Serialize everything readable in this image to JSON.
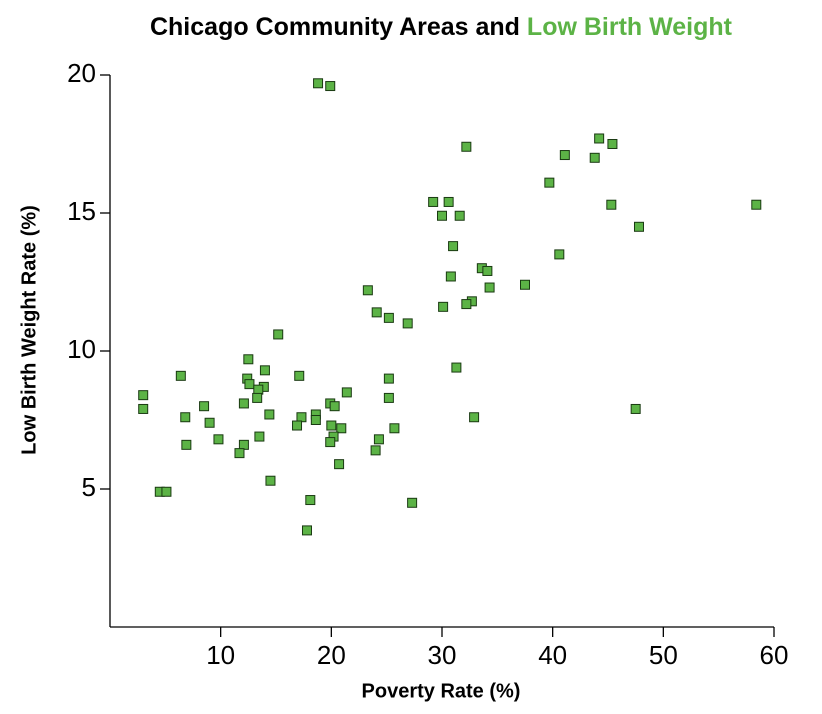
{
  "chart_data": {
    "type": "scatter",
    "title": [
      "Chicago Community Areas and",
      "Low Birth Weight"
    ],
    "title_colors": [
      "#000000",
      "#5cb346"
    ],
    "x_label": "Poverty Rate (%)",
    "y_label": "Low Birth Weight Rate (%)",
    "xlim": [
      0,
      60
    ],
    "xticks": [
      10,
      20,
      30,
      40,
      50,
      60
    ],
    "ylim": [
      0,
      20
    ],
    "yticks": [
      5,
      10,
      15,
      20
    ],
    "grid": false,
    "color": "#5cb346",
    "x": [
      18.8,
      19.9,
      32.2,
      44.2,
      45.4,
      41.1,
      43.8,
      39.7,
      29.2,
      30.6,
      30.0,
      31.6,
      45.3,
      58.4,
      47.8,
      31.0,
      40.6,
      33.6,
      34.1,
      30.8,
      34.3,
      37.5,
      23.3,
      32.7,
      32.2,
      30.1,
      24.1,
      25.2,
      26.9,
      15.2,
      12.5,
      31.3,
      14.0,
      6.4,
      17.1,
      12.4,
      25.2,
      12.6,
      13.9,
      13.4,
      21.4,
      3.0,
      13.3,
      25.2,
      12.1,
      19.9,
      20.3,
      8.5,
      3.0,
      47.5,
      14.4,
      18.6,
      6.8,
      17.3,
      32.9,
      18.6,
      9.0,
      20.0,
      16.9,
      20.9,
      25.7,
      20.2,
      13.5,
      9.8,
      24.3,
      19.9,
      6.9,
      12.1,
      24.0,
      11.7,
      20.7,
      14.5,
      4.5,
      5.1,
      18.1,
      27.3,
      17.8
    ],
    "values": [
      19.7,
      19.6,
      17.4,
      17.7,
      17.5,
      17.1,
      17.0,
      16.1,
      15.4,
      15.4,
      14.9,
      14.9,
      15.3,
      15.3,
      14.5,
      13.8,
      13.5,
      13.0,
      12.9,
      12.7,
      12.3,
      12.4,
      12.2,
      11.8,
      11.7,
      11.6,
      11.4,
      11.2,
      11.0,
      10.6,
      9.7,
      9.4,
      9.3,
      9.1,
      9.1,
      9.0,
      9.0,
      8.8,
      8.7,
      8.6,
      8.5,
      8.4,
      8.3,
      8.3,
      8.1,
      8.1,
      8.0,
      8.0,
      7.9,
      7.9,
      7.7,
      7.7,
      7.6,
      7.6,
      7.6,
      7.5,
      7.4,
      7.3,
      7.3,
      7.2,
      7.2,
      6.9,
      6.9,
      6.8,
      6.8,
      6.7,
      6.6,
      6.6,
      6.4,
      6.3,
      5.9,
      5.3,
      4.9,
      4.9,
      4.6,
      4.5,
      3.5
    ]
  }
}
